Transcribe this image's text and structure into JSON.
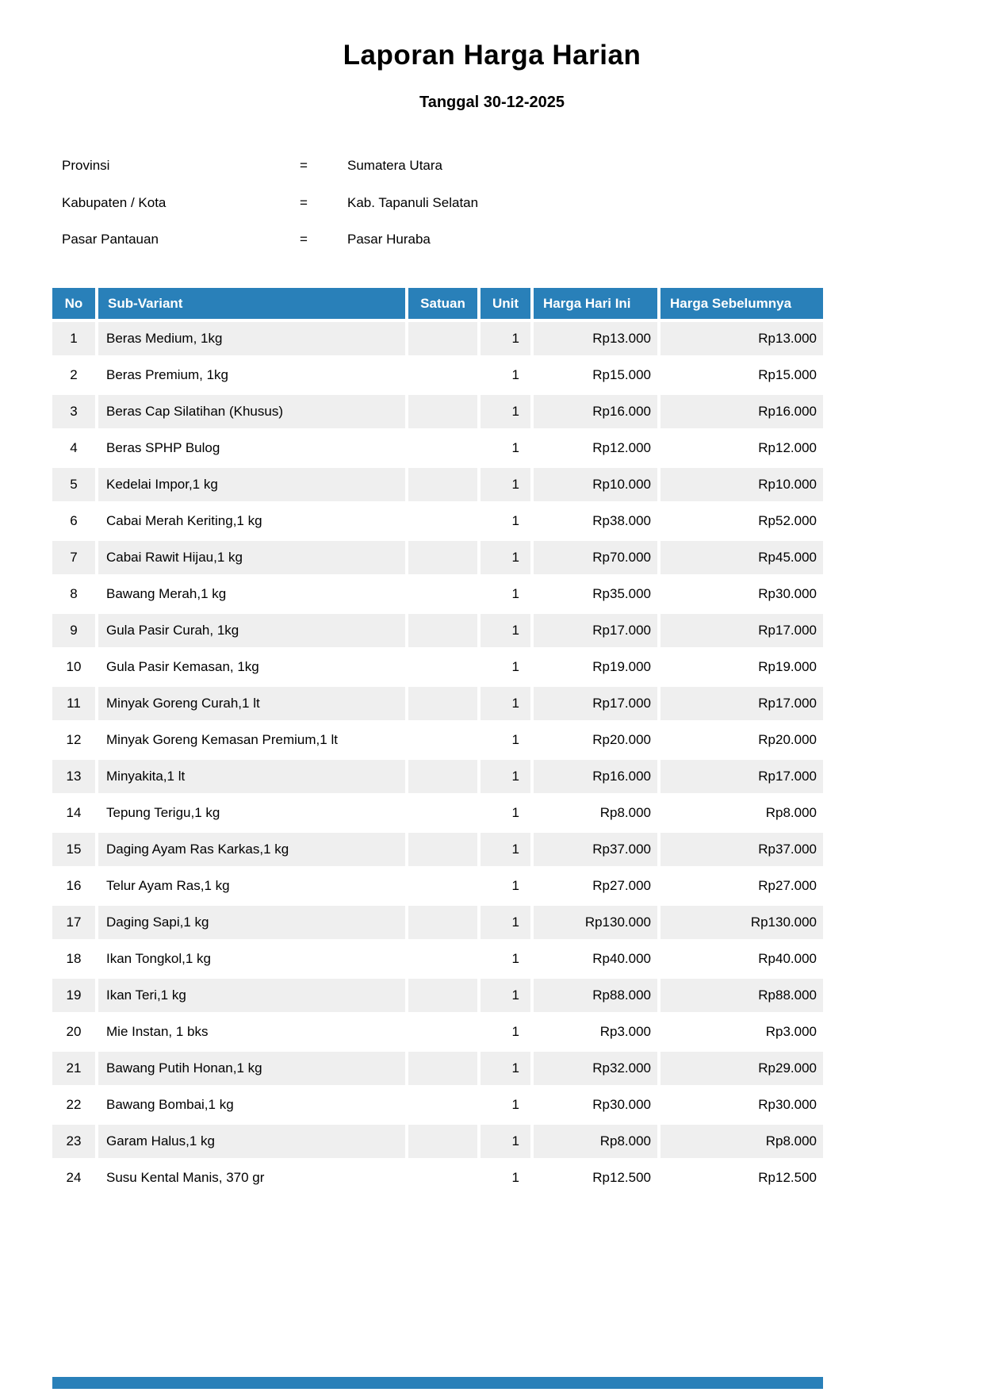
{
  "title": "Laporan Harga Harian",
  "subtitle": "Tanggal 30-12-2025",
  "meta": {
    "equals_sign": "=",
    "rows": [
      {
        "label": "Provinsi",
        "value": "Sumatera Utara"
      },
      {
        "label": "Kabupaten / Kota",
        "value": "Kab. Tapanuli Selatan"
      },
      {
        "label": "Pasar Pantauan",
        "value": "Pasar Huraba"
      }
    ]
  },
  "table": {
    "columns": [
      "No",
      "Sub-Variant",
      "Satuan",
      "Unit",
      "Harga Hari Ini",
      "Harga Sebelumnya"
    ],
    "rows": [
      {
        "no": "1",
        "sub_variant": "Beras Medium, 1kg",
        "satuan": "",
        "unit": "1",
        "harga_hari_ini": "Rp13.000",
        "harga_sebelumnya": "Rp13.000"
      },
      {
        "no": "2",
        "sub_variant": "Beras Premium, 1kg",
        "satuan": "",
        "unit": "1",
        "harga_hari_ini": "Rp15.000",
        "harga_sebelumnya": "Rp15.000"
      },
      {
        "no": "3",
        "sub_variant": "Beras Cap Silatihan (Khusus)",
        "satuan": "",
        "unit": "1",
        "harga_hari_ini": "Rp16.000",
        "harga_sebelumnya": "Rp16.000"
      },
      {
        "no": "4",
        "sub_variant": "Beras SPHP Bulog",
        "satuan": "",
        "unit": "1",
        "harga_hari_ini": "Rp12.000",
        "harga_sebelumnya": "Rp12.000"
      },
      {
        "no": "5",
        "sub_variant": "Kedelai Impor,1 kg",
        "satuan": "",
        "unit": "1",
        "harga_hari_ini": "Rp10.000",
        "harga_sebelumnya": "Rp10.000"
      },
      {
        "no": "6",
        "sub_variant": "Cabai Merah Keriting,1 kg",
        "satuan": "",
        "unit": "1",
        "harga_hari_ini": "Rp38.000",
        "harga_sebelumnya": "Rp52.000"
      },
      {
        "no": "7",
        "sub_variant": "Cabai Rawit Hijau,1 kg",
        "satuan": "",
        "unit": "1",
        "harga_hari_ini": "Rp70.000",
        "harga_sebelumnya": "Rp45.000"
      },
      {
        "no": "8",
        "sub_variant": "Bawang Merah,1 kg",
        "satuan": "",
        "unit": "1",
        "harga_hari_ini": "Rp35.000",
        "harga_sebelumnya": "Rp30.000"
      },
      {
        "no": "9",
        "sub_variant": "Gula Pasir Curah, 1kg",
        "satuan": "",
        "unit": "1",
        "harga_hari_ini": "Rp17.000",
        "harga_sebelumnya": "Rp17.000"
      },
      {
        "no": "10",
        "sub_variant": "Gula Pasir Kemasan, 1kg",
        "satuan": "",
        "unit": "1",
        "harga_hari_ini": "Rp19.000",
        "harga_sebelumnya": "Rp19.000"
      },
      {
        "no": "11",
        "sub_variant": "Minyak Goreng Curah,1 lt",
        "satuan": "",
        "unit": "1",
        "harga_hari_ini": "Rp17.000",
        "harga_sebelumnya": "Rp17.000"
      },
      {
        "no": "12",
        "sub_variant": "Minyak Goreng Kemasan Premium,1 lt",
        "satuan": "",
        "unit": "1",
        "harga_hari_ini": "Rp20.000",
        "harga_sebelumnya": "Rp20.000"
      },
      {
        "no": "13",
        "sub_variant": "Minyakita,1 lt",
        "satuan": "",
        "unit": "1",
        "harga_hari_ini": "Rp16.000",
        "harga_sebelumnya": "Rp17.000"
      },
      {
        "no": "14",
        "sub_variant": "Tepung Terigu,1 kg",
        "satuan": "",
        "unit": "1",
        "harga_hari_ini": "Rp8.000",
        "harga_sebelumnya": "Rp8.000"
      },
      {
        "no": "15",
        "sub_variant": "Daging Ayam Ras Karkas,1 kg",
        "satuan": "",
        "unit": "1",
        "harga_hari_ini": "Rp37.000",
        "harga_sebelumnya": "Rp37.000"
      },
      {
        "no": "16",
        "sub_variant": "Telur Ayam Ras,1 kg",
        "satuan": "",
        "unit": "1",
        "harga_hari_ini": "Rp27.000",
        "harga_sebelumnya": "Rp27.000"
      },
      {
        "no": "17",
        "sub_variant": "Daging Sapi,1 kg",
        "satuan": "",
        "unit": "1",
        "harga_hari_ini": "Rp130.000",
        "harga_sebelumnya": "Rp130.000"
      },
      {
        "no": "18",
        "sub_variant": "Ikan Tongkol,1 kg",
        "satuan": "",
        "unit": "1",
        "harga_hari_ini": "Rp40.000",
        "harga_sebelumnya": "Rp40.000"
      },
      {
        "no": "19",
        "sub_variant": "Ikan Teri,1 kg",
        "satuan": "",
        "unit": "1",
        "harga_hari_ini": "Rp88.000",
        "harga_sebelumnya": "Rp88.000"
      },
      {
        "no": "20",
        "sub_variant": "Mie Instan, 1 bks",
        "satuan": "",
        "unit": "1",
        "harga_hari_ini": "Rp3.000",
        "harga_sebelumnya": "Rp3.000"
      },
      {
        "no": "21",
        "sub_variant": "Bawang Putih Honan,1 kg",
        "satuan": "",
        "unit": "1",
        "harga_hari_ini": "Rp32.000",
        "harga_sebelumnya": "Rp29.000"
      },
      {
        "no": "22",
        "sub_variant": "Bawang Bombai,1 kg",
        "satuan": "",
        "unit": "1",
        "harga_hari_ini": "Rp30.000",
        "harga_sebelumnya": "Rp30.000"
      },
      {
        "no": "23",
        "sub_variant": "Garam Halus,1 kg",
        "satuan": "",
        "unit": "1",
        "harga_hari_ini": "Rp8.000",
        "harga_sebelumnya": "Rp8.000"
      },
      {
        "no": "24",
        "sub_variant": "Susu Kental Manis, 370 gr",
        "satuan": "",
        "unit": "1",
        "harga_hari_ini": "Rp12.500",
        "harga_sebelumnya": "Rp12.500"
      }
    ]
  },
  "colors": {
    "header_bg": "#2980b9",
    "row_alt_bg": "#efefef",
    "header_text": "#ffffff",
    "body_text": "#000000"
  }
}
